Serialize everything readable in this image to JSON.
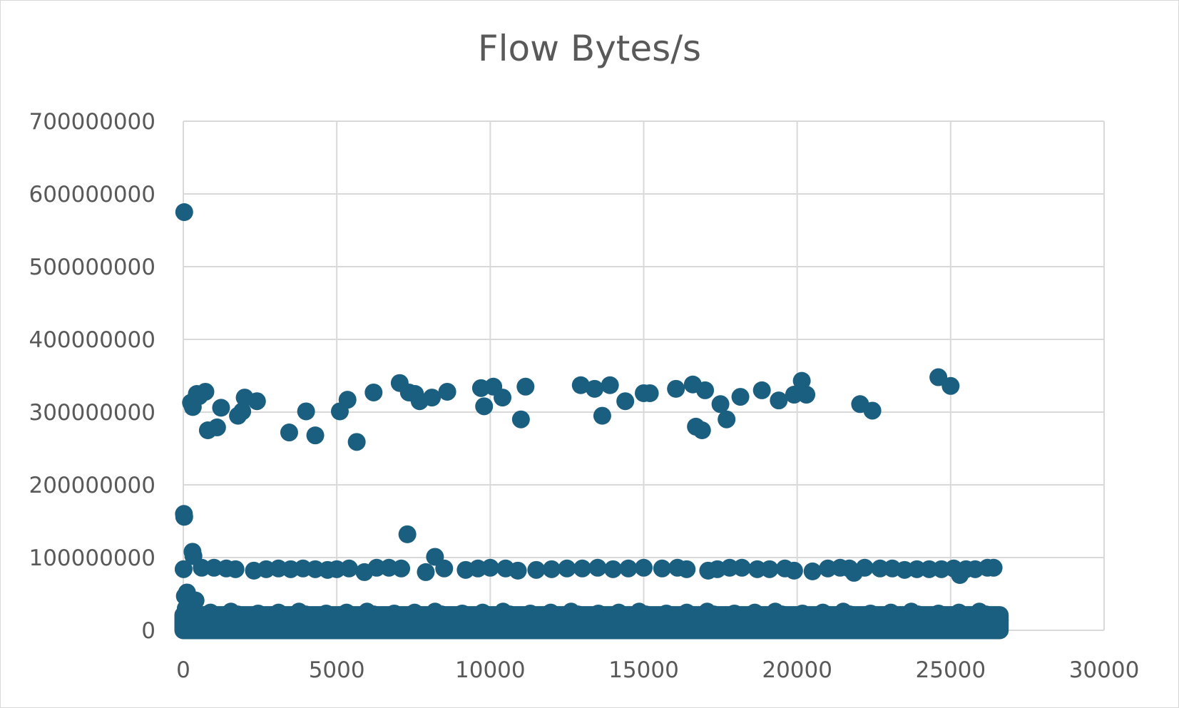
{
  "chart_data": {
    "type": "scatter",
    "title": "Flow Bytes/s",
    "xlabel": "",
    "ylabel": "",
    "xlim": [
      0,
      30000
    ],
    "ylim": [
      0,
      700000000
    ],
    "x_ticks": [
      "0",
      "5000",
      "10000",
      "15000",
      "20000",
      "25000",
      "30000"
    ],
    "y_ticks": [
      "0",
      "100000000",
      "200000000",
      "300000000",
      "400000000",
      "500000000",
      "600000000",
      "700000000"
    ],
    "grid": true,
    "legend": "none",
    "marker_color": "#1a5e80",
    "x_extent": [
      0,
      26600
    ],
    "series": [
      {
        "points": [
          [
            30,
            575000000
          ],
          [
            20,
            160000000
          ],
          [
            30,
            156000000
          ],
          [
            300,
            108000000
          ],
          [
            330,
            102000000
          ],
          [
            7300,
            132000000
          ],
          [
            8200,
            101000000
          ],
          [
            120,
            52000000
          ],
          [
            400,
            41000000
          ],
          [
            50,
            47000000
          ],
          [
            80,
            30000000
          ],
          [
            250,
            313000000
          ],
          [
            310,
            307000000
          ],
          [
            440,
            325000000
          ],
          [
            520,
            322000000
          ],
          [
            720,
            328000000
          ],
          [
            800,
            275000000
          ],
          [
            1100,
            279000000
          ],
          [
            1230,
            306000000
          ],
          [
            1780,
            295000000
          ],
          [
            1920,
            301000000
          ],
          [
            2000,
            320000000
          ],
          [
            2400,
            315000000
          ],
          [
            3450,
            272000000
          ],
          [
            4000,
            301000000
          ],
          [
            4300,
            268000000
          ],
          [
            5100,
            301000000
          ],
          [
            5350,
            317000000
          ],
          [
            5650,
            259000000
          ],
          [
            6200,
            327000000
          ],
          [
            7050,
            340000000
          ],
          [
            7350,
            327000000
          ],
          [
            7550,
            325000000
          ],
          [
            7700,
            315000000
          ],
          [
            8100,
            320000000
          ],
          [
            8600,
            328000000
          ],
          [
            9700,
            333000000
          ],
          [
            9800,
            308000000
          ],
          [
            10100,
            335000000
          ],
          [
            10400,
            320000000
          ],
          [
            11000,
            290000000
          ],
          [
            11150,
            335000000
          ],
          [
            12950,
            337000000
          ],
          [
            13400,
            332000000
          ],
          [
            13650,
            295000000
          ],
          [
            13900,
            337000000
          ],
          [
            14400,
            315000000
          ],
          [
            15000,
            326000000
          ],
          [
            15200,
            326000000
          ],
          [
            16050,
            332000000
          ],
          [
            16600,
            338000000
          ],
          [
            16700,
            280000000
          ],
          [
            16900,
            275000000
          ],
          [
            17000,
            330000000
          ],
          [
            17500,
            311000000
          ],
          [
            17700,
            290000000
          ],
          [
            18150,
            321000000
          ],
          [
            18850,
            330000000
          ],
          [
            19400,
            316000000
          ],
          [
            19900,
            324000000
          ],
          [
            20150,
            343000000
          ],
          [
            20300,
            324000000
          ],
          [
            22050,
            311000000
          ],
          [
            22450,
            302000000
          ],
          [
            24600,
            348000000
          ],
          [
            25000,
            336000000
          ],
          [
            10,
            84000000
          ],
          [
            600,
            86000000
          ],
          [
            1000,
            86000000
          ],
          [
            1400,
            85000000
          ],
          [
            1700,
            84000000
          ],
          [
            2300,
            82000000
          ],
          [
            2700,
            84000000
          ],
          [
            3100,
            85000000
          ],
          [
            3500,
            84000000
          ],
          [
            3900,
            85000000
          ],
          [
            4300,
            84000000
          ],
          [
            4700,
            83000000
          ],
          [
            5000,
            84000000
          ],
          [
            5400,
            85000000
          ],
          [
            5900,
            80000000
          ],
          [
            6300,
            86000000
          ],
          [
            6700,
            86000000
          ],
          [
            7100,
            85000000
          ],
          [
            7900,
            80000000
          ],
          [
            8500,
            85000000
          ],
          [
            9200,
            83000000
          ],
          [
            9600,
            85000000
          ],
          [
            10000,
            86000000
          ],
          [
            10500,
            85000000
          ],
          [
            10900,
            82000000
          ],
          [
            11500,
            83000000
          ],
          [
            12000,
            84000000
          ],
          [
            12500,
            85000000
          ],
          [
            13000,
            85000000
          ],
          [
            13500,
            86000000
          ],
          [
            14000,
            84000000
          ],
          [
            14500,
            85000000
          ],
          [
            15000,
            86000000
          ],
          [
            15600,
            85000000
          ],
          [
            16100,
            86000000
          ],
          [
            16400,
            84000000
          ],
          [
            17100,
            82000000
          ],
          [
            17400,
            84000000
          ],
          [
            17800,
            86000000
          ],
          [
            18200,
            86000000
          ],
          [
            18700,
            84000000
          ],
          [
            19100,
            84000000
          ],
          [
            19600,
            85000000
          ],
          [
            19900,
            82000000
          ],
          [
            20500,
            81000000
          ],
          [
            21000,
            85000000
          ],
          [
            21400,
            86000000
          ],
          [
            21700,
            85000000
          ],
          [
            21850,
            79000000
          ],
          [
            22200,
            86000000
          ],
          [
            22700,
            85000000
          ],
          [
            23100,
            85000000
          ],
          [
            23500,
            83000000
          ],
          [
            23900,
            84000000
          ],
          [
            24300,
            84000000
          ],
          [
            24700,
            84000000
          ],
          [
            25100,
            85000000
          ],
          [
            25300,
            76000000
          ],
          [
            25500,
            84000000
          ],
          [
            25800,
            84000000
          ],
          [
            26200,
            86000000
          ],
          [
            26400,
            86000000
          ]
        ]
      }
    ]
  }
}
